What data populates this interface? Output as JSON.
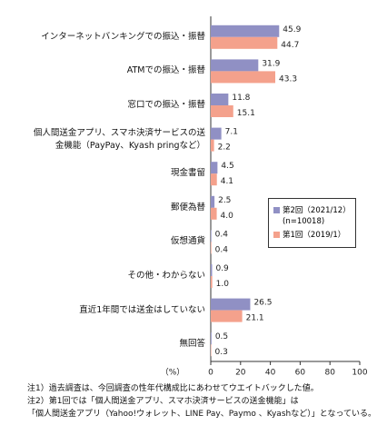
{
  "chart_data": {
    "type": "hbar",
    "categories": [
      "インターネットバンキングでの振込・振替",
      "ATMでの振込・振替",
      "窓口での振込・振替",
      "個人間送金アプリ、スマホ決済サービスの送\n金機能（PayPay、Kyash pringなど）",
      "現金書留",
      "郵便為替",
      "仮想通貨",
      "その他・わからない",
      "直近1年間では送金はしていない",
      "無回答"
    ],
    "series": [
      {
        "name": "第2回（2021/12）\n(n=10018)",
        "color": "#9090c4",
        "values": [
          45.9,
          31.9,
          11.8,
          7.1,
          4.5,
          2.5,
          0.4,
          0.9,
          26.5,
          0.5
        ],
        "value_labels": [
          "45.9",
          "31.9",
          "11.8",
          "7.1",
          "4.5",
          "2.5",
          "0.4",
          "0.9",
          "26.5",
          "0.5"
        ]
      },
      {
        "name": "第1回（2019/1）",
        "color": "#f4a18c",
        "values": [
          44.7,
          43.3,
          15.1,
          2.2,
          4.1,
          4.0,
          0.4,
          1.0,
          21.1,
          0.3
        ],
        "value_labels": [
          "44.7",
          "43.3",
          "15.1",
          "2.2",
          "4.1",
          "4.0",
          "0.4",
          "1.0",
          "21.1",
          "0.3"
        ]
      }
    ],
    "xlabel": "（%）",
    "xlim": [
      0,
      100
    ],
    "xticks": [
      0,
      20,
      40,
      60,
      80,
      100
    ],
    "legend": "center right",
    "notes": [
      "注1）過去調査は、今回調査の性年代構成比にあわせてウエイトバックした値。",
      "注2）第1回では「個人間送金アプリ、スマホ決済サービスの送金機能」は",
      "「個人間送金アプリ（Yahoo!ウォレット、LINE Pay、Paymo 、Kyashなど）」となっている。"
    ]
  }
}
